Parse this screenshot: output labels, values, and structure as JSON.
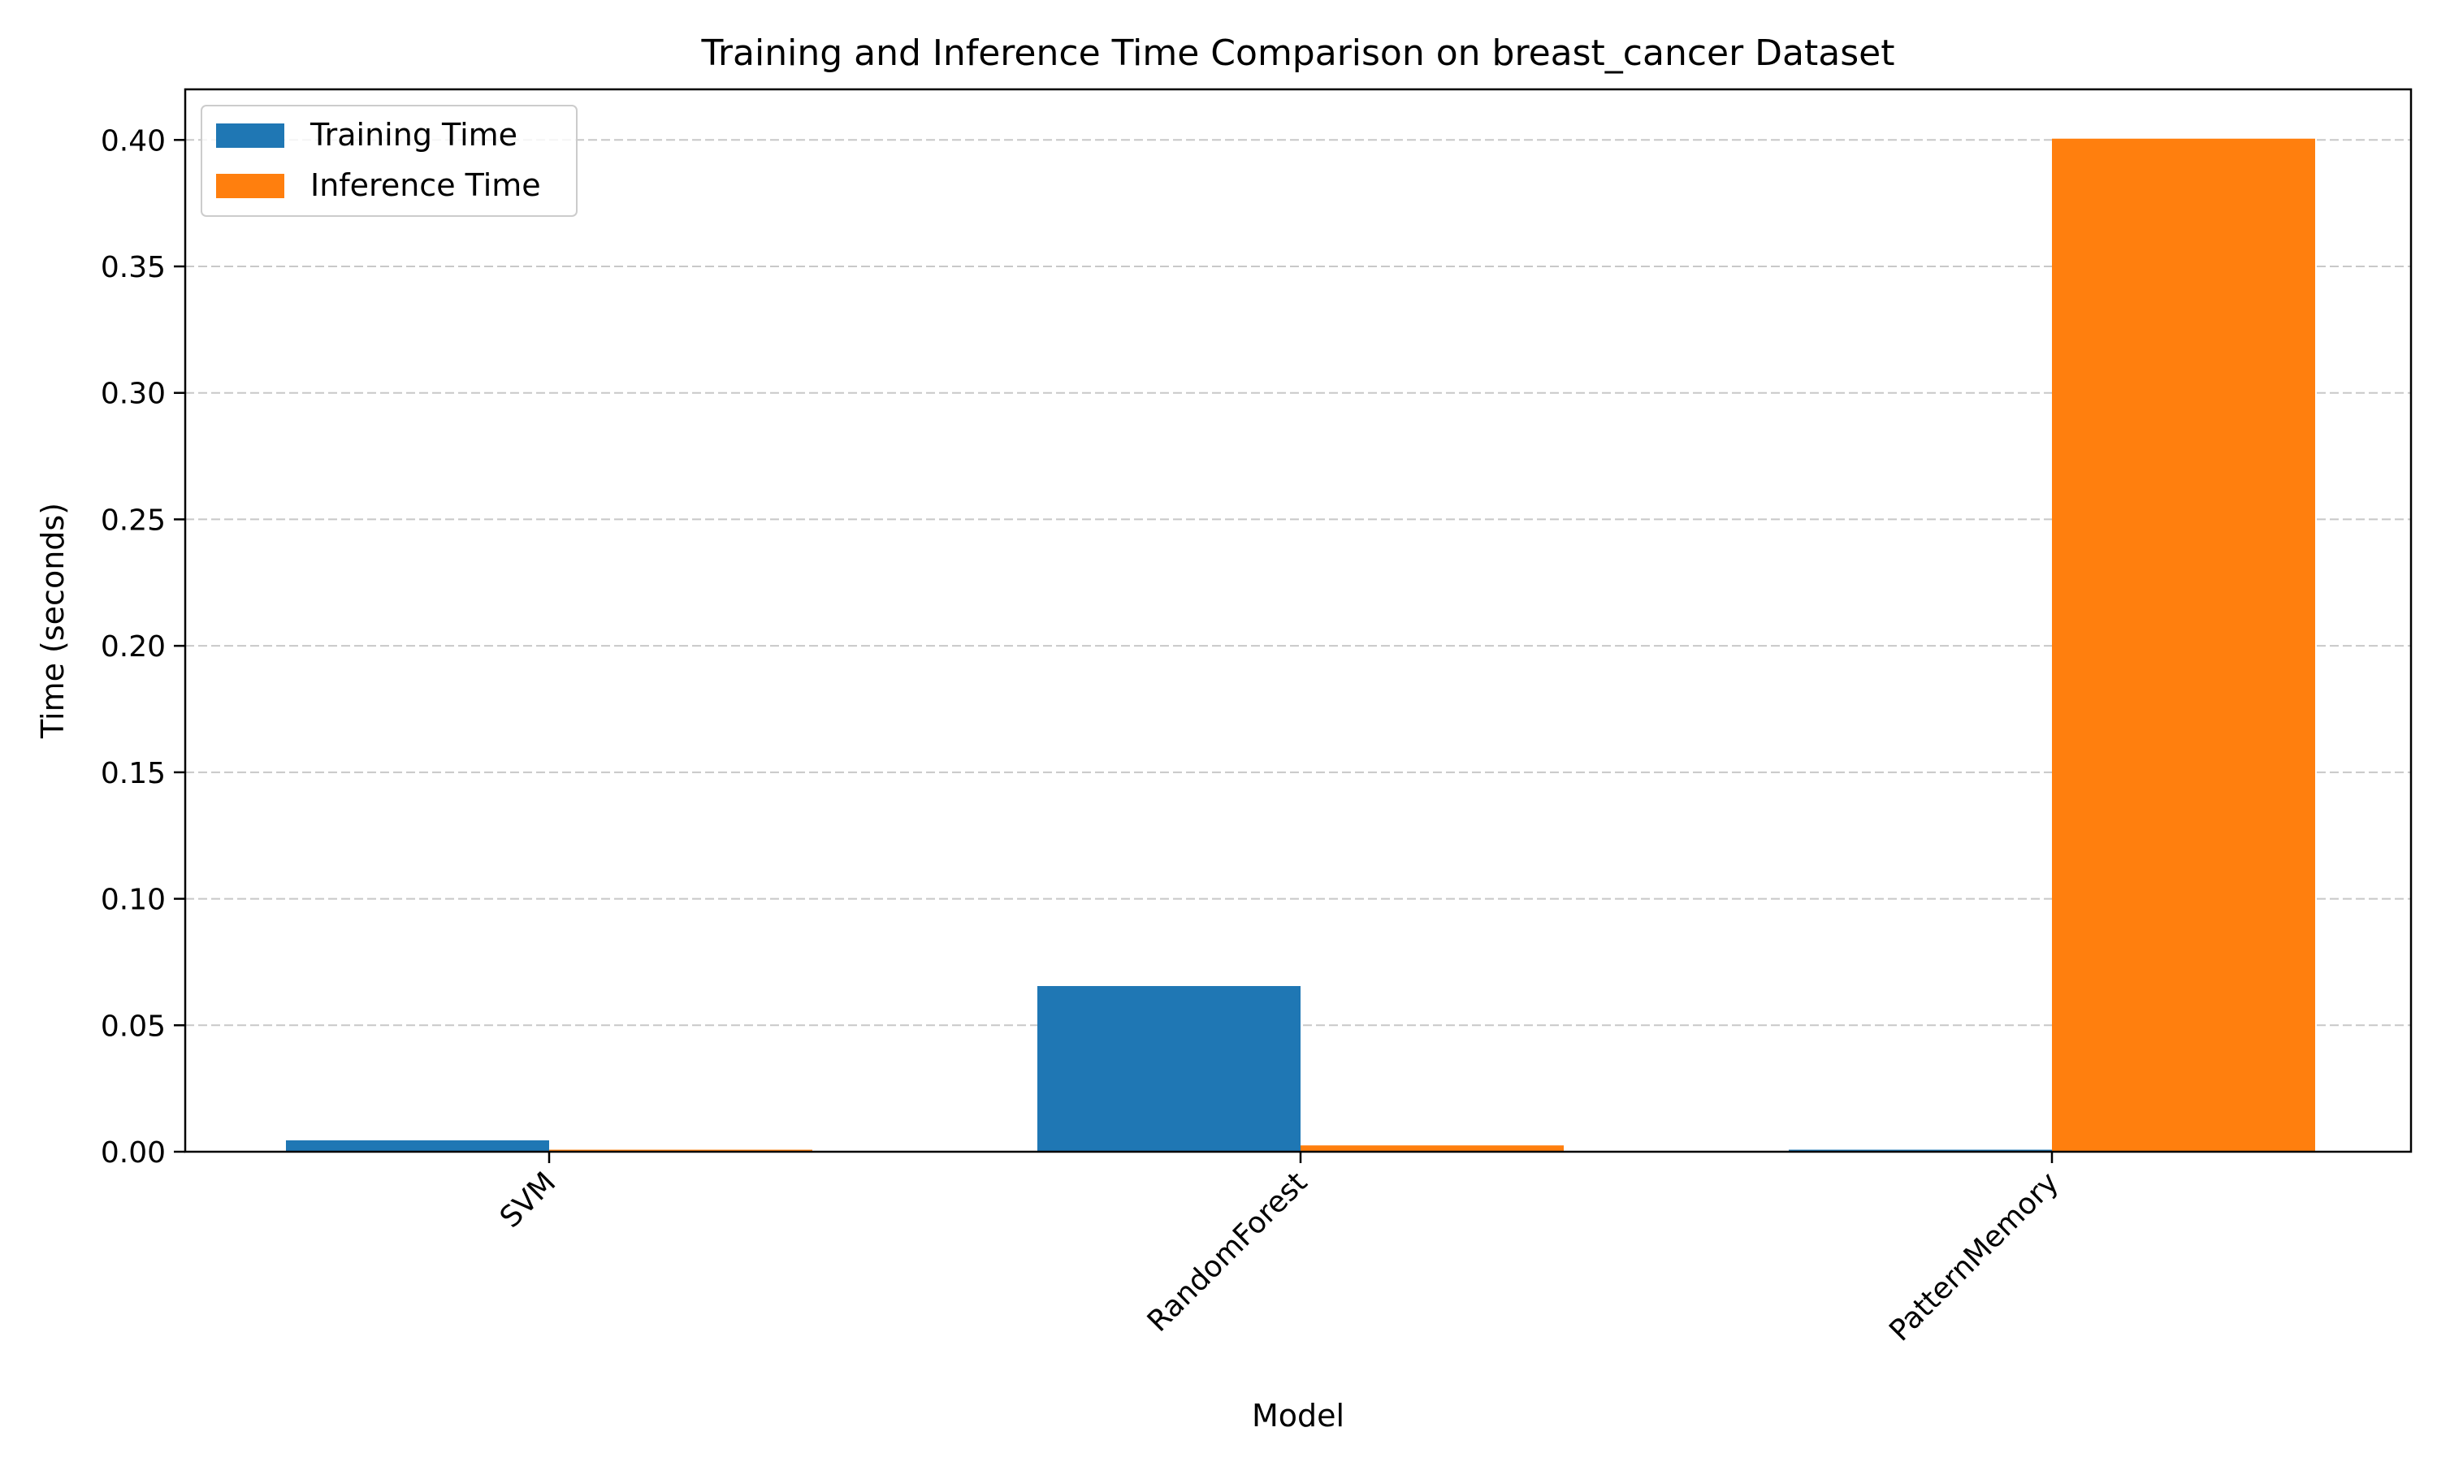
{
  "chart_data": {
    "type": "bar",
    "title": "Training and Inference Time Comparison on breast_cancer Dataset",
    "xlabel": "Model",
    "ylabel": "Time (seconds)",
    "categories": [
      "SVM",
      "RandomForest",
      "PatternMemory"
    ],
    "series": [
      {
        "name": "Training Time",
        "values": [
          0.0045,
          0.0655,
          0.0008
        ],
        "color": "#1f77b4"
      },
      {
        "name": "Inference Time",
        "values": [
          0.0008,
          0.0025,
          0.4005
        ],
        "color": "#ff7f0e"
      }
    ],
    "ylim": [
      0,
      0.42
    ],
    "yticks": [
      "0.00",
      "0.05",
      "0.10",
      "0.15",
      "0.20",
      "0.25",
      "0.30",
      "0.35",
      "0.40"
    ],
    "grid": "y-dashed",
    "legend_position": "top-left"
  }
}
